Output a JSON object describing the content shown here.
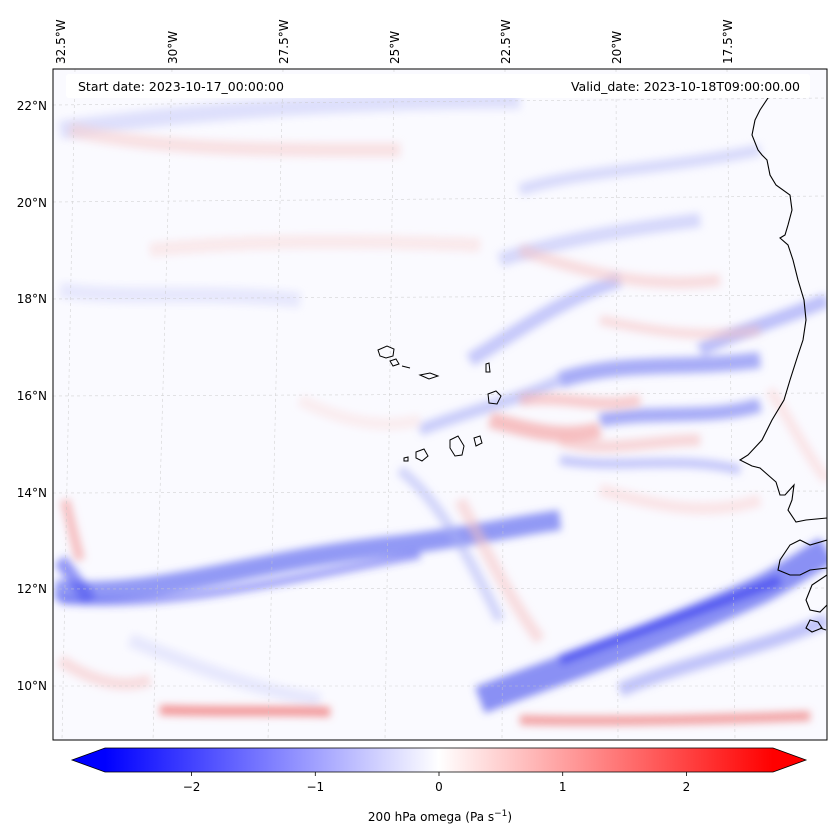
{
  "header": {
    "start_date": "Start date: 2023-10-17_00:00:00",
    "valid_date": "Valid_date: 2023-10-18T09:00:00.00"
  },
  "map": {
    "lon_labels": [
      "32.5°W",
      "30°W",
      "27.5°W",
      "25°W",
      "22.5°W",
      "20°W",
      "17.5°W"
    ],
    "lat_labels": [
      "22°N",
      "20°N",
      "18°N",
      "16°N",
      "14°N",
      "12°N",
      "10°N"
    ],
    "field": "200 hPa omega",
    "colors": {
      "negative": "#0000ff",
      "neutral": "#ffffff",
      "positive": "#ff0000",
      "coast": "#000000"
    }
  },
  "colorbar": {
    "ticks": [
      "−2",
      "−1",
      "0",
      "1",
      "2"
    ],
    "tick_values": [
      -2,
      -1,
      0,
      1,
      2
    ],
    "range": [
      -2.7,
      2.7
    ],
    "label_main": "200 hPa omega (Pa s",
    "label_exp": "−1",
    "label_tail": ")"
  }
}
